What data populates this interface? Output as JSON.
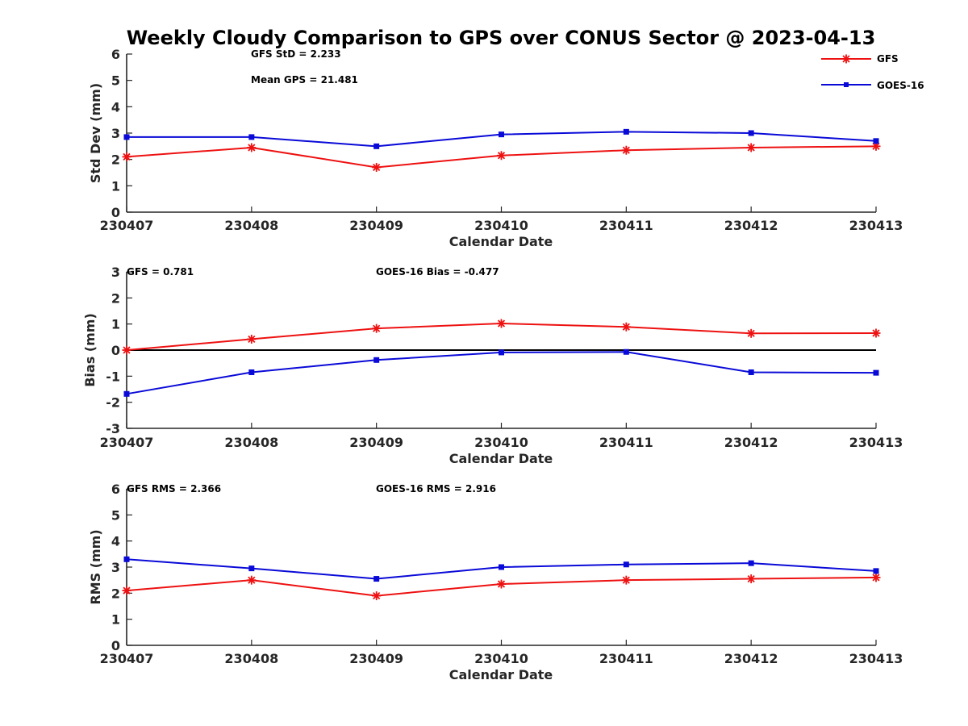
{
  "title": "Weekly Cloudy Comparison to GPS over CONUS Sector @ 2023-04-13",
  "colors": {
    "GFS": "#ee1111",
    "GOES-16": "#0a0ad8",
    "axis": "#262626",
    "zero_line": "#000000"
  },
  "legend": {
    "placement": "top-right",
    "entries": [
      "GFS",
      "GOES-16"
    ]
  },
  "chart_data": [
    {
      "type": "line",
      "categories": [
        "230407",
        "230408",
        "230409",
        "230410",
        "230411",
        "230412",
        "230413"
      ],
      "xlabel": "Calendar Date",
      "ylabel": "Std Dev (mm)",
      "ylim": [
        0,
        6
      ],
      "yticks": [
        "0",
        "1",
        "2",
        "3",
        "4",
        "5",
        "6"
      ],
      "zero_line": false,
      "annotations": [
        "GFS StD = 2.233",
        "Mean GPS = 21.481"
      ],
      "series": [
        {
          "name": "GFS",
          "marker": "asterisk",
          "values": [
            2.1,
            2.45,
            1.7,
            2.15,
            2.35,
            2.45,
            2.5
          ]
        },
        {
          "name": "GOES-16",
          "marker": "square",
          "values": [
            2.85,
            2.85,
            2.5,
            2.95,
            3.05,
            3.0,
            2.7
          ]
        }
      ]
    },
    {
      "type": "line",
      "categories": [
        "230407",
        "230408",
        "230409",
        "230410",
        "230411",
        "230412",
        "230413"
      ],
      "xlabel": "Calendar Date",
      "ylabel": "Bias (mm)",
      "ylim": [
        -3,
        3
      ],
      "yticks": [
        "-3",
        "-2",
        "-1",
        "0",
        "1",
        "2",
        "3"
      ],
      "zero_line": true,
      "annotations": [
        "GFS = 0.781",
        "GOES-16 Bias  = -0.477"
      ],
      "series": [
        {
          "name": "GFS",
          "marker": "asterisk",
          "values": [
            0.0,
            0.42,
            0.83,
            1.02,
            0.89,
            0.64,
            0.65
          ]
        },
        {
          "name": "GOES-16",
          "marker": "square",
          "values": [
            -1.68,
            -0.85,
            -0.38,
            -0.09,
            -0.07,
            -0.85,
            -0.87
          ]
        }
      ]
    },
    {
      "type": "line",
      "categories": [
        "230407",
        "230408",
        "230409",
        "230410",
        "230411",
        "230412",
        "230413"
      ],
      "xlabel": "Calendar Date",
      "ylabel": "RMS (mm)",
      "ylim": [
        0,
        6
      ],
      "yticks": [
        "0",
        "1",
        "2",
        "3",
        "4",
        "5",
        "6"
      ],
      "zero_line": false,
      "annotations": [
        "GFS RMS = 2.366",
        "GOES-16 RMS = 2.916"
      ],
      "series": [
        {
          "name": "GFS",
          "marker": "asterisk",
          "values": [
            2.1,
            2.5,
            1.9,
            2.35,
            2.5,
            2.55,
            2.6
          ]
        },
        {
          "name": "GOES-16",
          "marker": "square",
          "values": [
            3.3,
            2.95,
            2.55,
            3.0,
            3.1,
            3.15,
            2.85
          ]
        }
      ]
    }
  ]
}
